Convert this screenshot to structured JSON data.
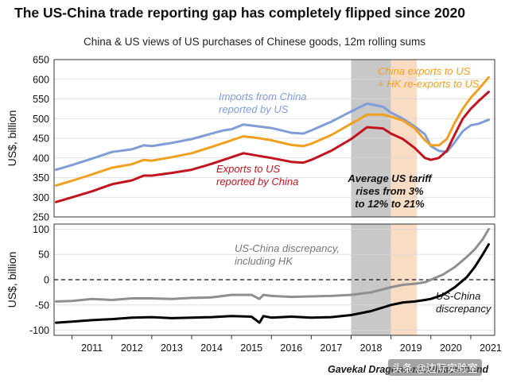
{
  "title": "The US-China trade reporting gap has completely flipped since 2020",
  "subtitle": "China & US views of US purchases of Chinese goods, 12m rolling sums",
  "credit": "Gavekal Dragonomics/Macrobond",
  "watermark": "头条 @边际实验室",
  "colors": {
    "imports_us": "#7f9ed8",
    "exports_hk": "#f0a020",
    "exports_china": "#c0151f",
    "discrepancy_hk": "#8f8f8f",
    "discrepancy": "#000000",
    "shade_gray": "#c8c8c8",
    "shade_peach": "#f8dcc4"
  },
  "chart_data": [
    {
      "type": "line",
      "ylabel": "US$, billion",
      "ylim": [
        250,
        650
      ],
      "yticks": [
        250,
        300,
        350,
        400,
        450,
        500,
        550,
        600,
        650
      ],
      "xlim": [
        2010.55,
        2021.6
      ],
      "x_tick_labels": [
        "2011",
        "2012",
        "2013",
        "2014",
        "2015",
        "2016",
        "2017",
        "2018",
        "2019",
        "2020",
        "2021"
      ],
      "grid": true,
      "shaded_periods": [
        {
          "from": 2018.0,
          "to": 2019.0,
          "color": "gray"
        },
        {
          "from": 2019.0,
          "to": 2019.65,
          "color": "peach"
        }
      ],
      "annotations": [
        {
          "text": "Imports from China reported by US",
          "lines": [
            "Imports from China",
            "reported by US"
          ],
          "series": "imports_us"
        },
        {
          "text": "China exports to US + HK re-exports to US",
          "lines": [
            "China exports to US",
            "+ HK re-exports to US"
          ],
          "series": "exports_hk"
        },
        {
          "text": "Exports to US reported by China",
          "lines": [
            "Exports to US",
            "reported by China"
          ],
          "series": "exports_china"
        },
        {
          "text": "Average US tariff rises from 3% to 12% to 21%",
          "lines": [
            "Average US tariff",
            "rises from 3%",
            "to 12% to 21%"
          ],
          "series": ""
        }
      ],
      "series": [
        {
          "key": "imports_us",
          "name": "Imports from China reported by US",
          "x": [
            2010.6,
            2011.0,
            2011.5,
            2012.0,
            2012.5,
            2012.8,
            2013.0,
            2013.5,
            2014.0,
            2014.5,
            2014.8,
            2015.0,
            2015.3,
            2015.7,
            2016.0,
            2016.5,
            2016.8,
            2017.0,
            2017.5,
            2018.0,
            2018.4,
            2018.8,
            2019.0,
            2019.3,
            2019.6,
            2019.85,
            2020.0,
            2020.2,
            2020.4,
            2020.6,
            2020.8,
            2021.0,
            2021.2,
            2021.45
          ],
          "y": [
            370,
            382,
            398,
            415,
            422,
            432,
            430,
            438,
            448,
            462,
            470,
            473,
            485,
            480,
            476,
            464,
            462,
            470,
            492,
            518,
            538,
            530,
            515,
            500,
            480,
            460,
            430,
            418,
            415,
            440,
            468,
            483,
            487,
            497
          ]
        },
        {
          "key": "exports_hk",
          "name": "China exports to US + HK re-exports to US",
          "x": [
            2010.6,
            2011.0,
            2011.5,
            2012.0,
            2012.5,
            2012.8,
            2013.0,
            2013.5,
            2014.0,
            2014.5,
            2014.8,
            2015.0,
            2015.3,
            2015.7,
            2016.0,
            2016.5,
            2016.8,
            2017.0,
            2017.5,
            2018.0,
            2018.4,
            2018.8,
            2019.0,
            2019.3,
            2019.6,
            2019.85,
            2020.0,
            2020.2,
            2020.4,
            2020.6,
            2020.8,
            2021.0,
            2021.2,
            2021.45
          ],
          "y": [
            330,
            342,
            358,
            375,
            384,
            395,
            393,
            402,
            412,
            428,
            438,
            445,
            455,
            450,
            445,
            433,
            430,
            436,
            458,
            487,
            510,
            510,
            505,
            495,
            475,
            445,
            432,
            432,
            448,
            490,
            525,
            553,
            575,
            605
          ]
        },
        {
          "key": "exports_china",
          "name": "Exports to US reported by China",
          "x": [
            2010.6,
            2011.0,
            2011.5,
            2012.0,
            2012.5,
            2012.8,
            2013.0,
            2013.5,
            2014.0,
            2014.5,
            2014.8,
            2015.0,
            2015.3,
            2015.7,
            2016.0,
            2016.5,
            2016.8,
            2017.0,
            2017.5,
            2018.0,
            2018.4,
            2018.8,
            2019.0,
            2019.3,
            2019.6,
            2019.85,
            2020.0,
            2020.2,
            2020.4,
            2020.6,
            2020.8,
            2021.0,
            2021.2,
            2021.45
          ],
          "y": [
            288,
            300,
            315,
            333,
            343,
            355,
            355,
            362,
            370,
            385,
            395,
            402,
            412,
            405,
            400,
            390,
            388,
            395,
            418,
            448,
            478,
            475,
            462,
            448,
            425,
            400,
            395,
            400,
            418,
            460,
            500,
            525,
            545,
            568
          ]
        }
      ]
    },
    {
      "type": "line",
      "ylabel": "US$, billion",
      "ylim": [
        -110,
        110
      ],
      "yticks": [
        -100,
        -50,
        0,
        50,
        100
      ],
      "xlim": [
        2010.55,
        2021.6
      ],
      "x_tick_labels": [
        "2011",
        "2012",
        "2013",
        "2014",
        "2015",
        "2016",
        "2017",
        "2018",
        "2019",
        "2020",
        "2021"
      ],
      "grid": true,
      "zero_line": "dashed",
      "shaded_periods": [
        {
          "from": 2018.0,
          "to": 2019.0,
          "color": "gray"
        },
        {
          "from": 2019.0,
          "to": 2019.65,
          "color": "peach"
        }
      ],
      "annotations": [
        {
          "text": "US-China discrepancy, including HK",
          "lines": [
            "US-China discrepancy,",
            "including HK"
          ],
          "series": "discrepancy_hk"
        },
        {
          "text": "US-China discrepancy",
          "lines": [
            "US-China",
            "discrepancy"
          ],
          "series": "discrepancy"
        }
      ],
      "series": [
        {
          "key": "discrepancy_hk",
          "name": "US-China discrepancy, including HK",
          "x": [
            2010.6,
            2011.0,
            2011.5,
            2012.0,
            2012.5,
            2013.0,
            2013.5,
            2014.0,
            2014.5,
            2015.0,
            2015.5,
            2015.7,
            2015.8,
            2016.0,
            2016.5,
            2017.0,
            2017.5,
            2018.0,
            2018.5,
            2019.0,
            2019.3,
            2019.6,
            2019.85,
            2020.0,
            2020.3,
            2020.6,
            2020.9,
            2021.1,
            2021.3,
            2021.45
          ],
          "y": [
            -43,
            -42,
            -38,
            -40,
            -37,
            -37,
            -38,
            -36,
            -35,
            -30,
            -30,
            -38,
            -30,
            -32,
            -34,
            -33,
            -32,
            -30,
            -25,
            -15,
            -10,
            -8,
            -5,
            0,
            10,
            25,
            45,
            60,
            80,
            100
          ]
        },
        {
          "key": "discrepancy",
          "name": "US-China discrepancy",
          "x": [
            2010.6,
            2011.0,
            2011.5,
            2012.0,
            2012.5,
            2013.0,
            2013.5,
            2014.0,
            2014.5,
            2015.0,
            2015.5,
            2015.7,
            2015.8,
            2016.0,
            2016.5,
            2017.0,
            2017.5,
            2018.0,
            2018.5,
            2019.0,
            2019.3,
            2019.6,
            2019.85,
            2020.0,
            2020.3,
            2020.6,
            2020.9,
            2021.1,
            2021.3,
            2021.45
          ],
          "y": [
            -85,
            -83,
            -80,
            -78,
            -75,
            -74,
            -76,
            -75,
            -74,
            -72,
            -73,
            -85,
            -72,
            -75,
            -73,
            -75,
            -74,
            -70,
            -62,
            -50,
            -45,
            -43,
            -40,
            -38,
            -30,
            -15,
            5,
            25,
            50,
            70
          ]
        }
      ]
    }
  ]
}
